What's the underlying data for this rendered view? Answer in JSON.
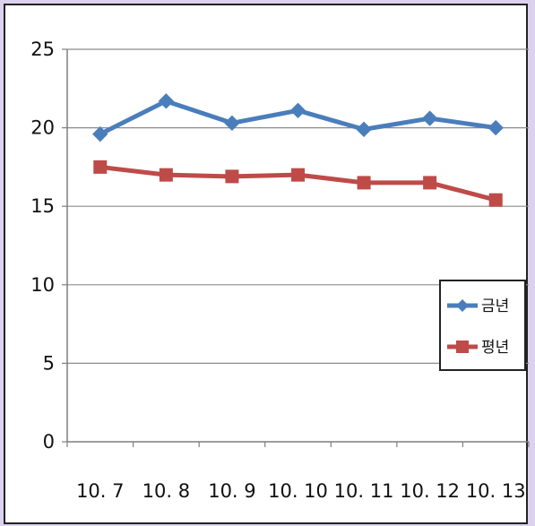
{
  "chart_data": {
    "type": "line",
    "categories": [
      "10. 7",
      "10. 8",
      "10. 9",
      "10. 10",
      "10. 11",
      "10. 12",
      "10. 13"
    ],
    "series": [
      {
        "name": "금년",
        "values": [
          19.6,
          21.7,
          20.3,
          21.1,
          19.9,
          20.6,
          20.0
        ],
        "color": "#4a7ebb",
        "marker": "diamond"
      },
      {
        "name": "평년",
        "values": [
          17.5,
          17.0,
          16.9,
          17.0,
          16.5,
          16.5,
          15.4
        ],
        "color": "#be4b48",
        "marker": "square"
      }
    ],
    "y_ticks": [
      "0",
      "5",
      "10",
      "15",
      "20",
      "25"
    ],
    "ylim": [
      0,
      25
    ],
    "grid": "horizontal",
    "legend_position": "right"
  }
}
